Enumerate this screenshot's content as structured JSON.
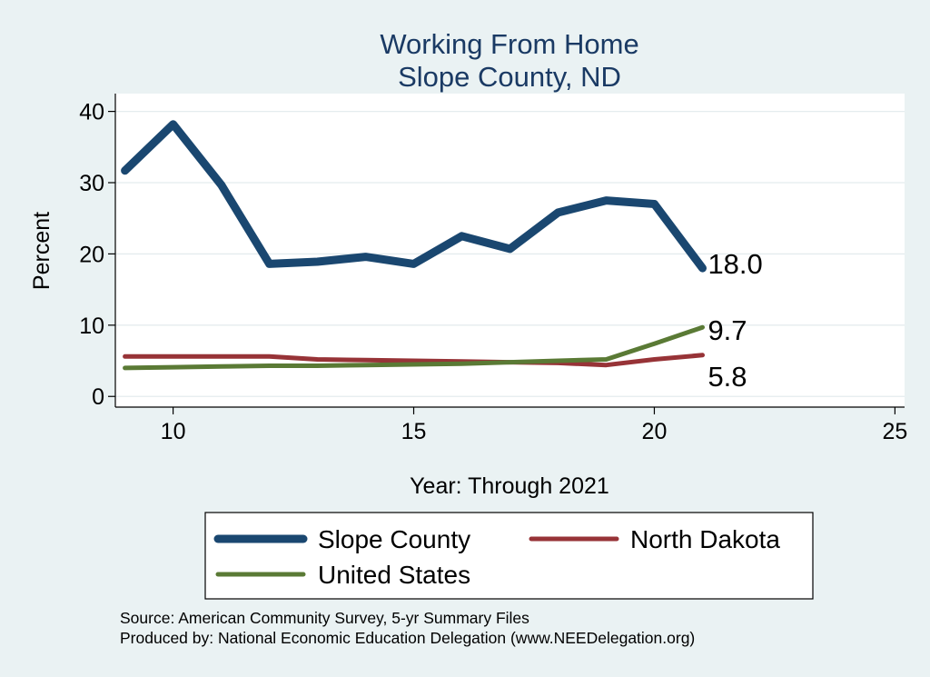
{
  "chart_data": {
    "type": "line",
    "title": "Working From Home",
    "subtitle": "Slope County, ND",
    "xlabel": "Year: Through 2021",
    "ylabel": "Percent",
    "xlim": [
      8.8,
      25.2
    ],
    "ylim": [
      -1.5,
      42.5
    ],
    "xticks": [
      10,
      15,
      20,
      25
    ],
    "yticks": [
      0,
      10,
      20,
      30,
      40
    ],
    "grid": true,
    "legend_position": "bottom",
    "x": [
      9,
      10,
      11,
      12,
      13,
      14,
      15,
      16,
      17,
      18,
      19,
      20,
      21
    ],
    "series": [
      {
        "name": "Slope County",
        "color": "#1a4770",
        "values": [
          31.7,
          38.2,
          29.7,
          18.6,
          18.9,
          19.6,
          18.6,
          22.5,
          20.7,
          25.8,
          27.5,
          27.0,
          18.0
        ],
        "end_label": "18.0"
      },
      {
        "name": "North Dakota",
        "color": "#973337",
        "values": [
          5.6,
          5.6,
          5.6,
          5.6,
          5.2,
          5.1,
          5.0,
          4.9,
          4.8,
          4.7,
          4.4,
          5.2,
          5.8
        ],
        "end_label": "5.8"
      },
      {
        "name": "United States",
        "color": "#5a7a35",
        "values": [
          4.0,
          4.1,
          4.2,
          4.3,
          4.3,
          4.4,
          4.5,
          4.6,
          4.8,
          5.0,
          5.2,
          7.4,
          9.7
        ],
        "end_label": "9.7"
      }
    ],
    "notes": [
      "Source: American Community Survey, 5-yr Summary Files",
      "Produced by: National Economic Education Delegation (www.NEEDelegation.org)"
    ]
  }
}
